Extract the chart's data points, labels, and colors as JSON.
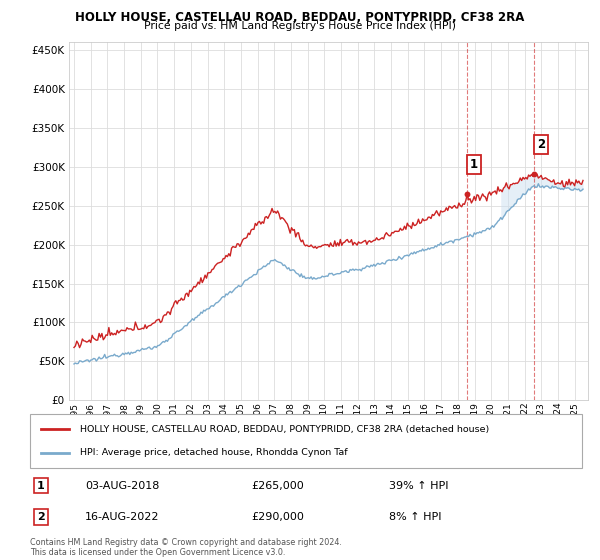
{
  "title": "HOLLY HOUSE, CASTELLAU ROAD, BEDDAU, PONTYPRIDD, CF38 2RA",
  "subtitle": "Price paid vs. HM Land Registry's House Price Index (HPI)",
  "legend_line1": "HOLLY HOUSE, CASTELLAU ROAD, BEDDAU, PONTYPRIDD, CF38 2RA (detached house)",
  "legend_line2": "HPI: Average price, detached house, Rhondda Cynon Taf",
  "ann1_label": "1",
  "ann1_date": "03-AUG-2018",
  "ann1_price": "£265,000",
  "ann1_pct": "39% ↑ HPI",
  "ann2_label": "2",
  "ann2_date": "16-AUG-2022",
  "ann2_price": "£290,000",
  "ann2_pct": "8% ↑ HPI",
  "footer": "Contains HM Land Registry data © Crown copyright and database right 2024.\nThis data is licensed under the Open Government Licence v3.0.",
  "ylim": [
    0,
    460000
  ],
  "yticks": [
    0,
    50000,
    100000,
    150000,
    200000,
    250000,
    300000,
    350000,
    400000,
    450000
  ],
  "property_color": "#cc2222",
  "hpi_color": "#7aaacc",
  "shading_color": "#cce0f0",
  "sale1_year": 2018.58,
  "sale1_price": 265000,
  "sale2_year": 2022.58,
  "sale2_price": 290000,
  "xmin": 1994.7,
  "xmax": 2025.8
}
